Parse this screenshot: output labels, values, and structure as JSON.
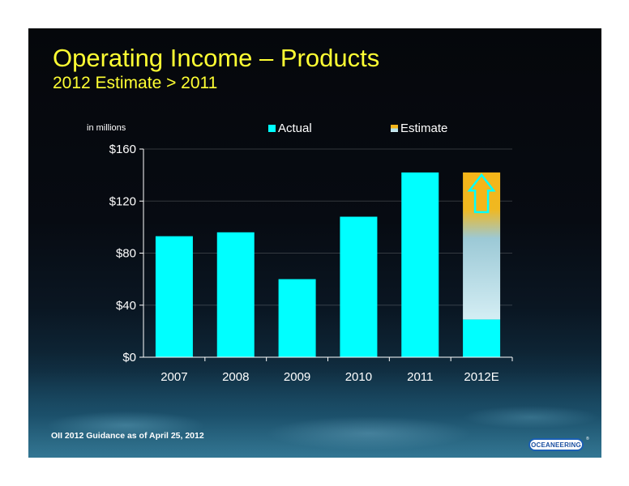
{
  "slide": {
    "title": "Operating Income – Products",
    "subtitle": "2012 Estimate > 2011",
    "unit_note": "in millions",
    "footnote": "OII 2012 Guidance as of April 25, 2012",
    "logo_text": "OCEANEERING",
    "logo_mark": "®"
  },
  "colors": {
    "title": "#ffff33",
    "actual": "#00ffff",
    "estimate_top": "#f5b519",
    "estimate_bottom": "#d4eef4",
    "arrow": "#f5b519"
  },
  "chart_data": {
    "type": "bar",
    "categories": [
      "2007",
      "2008",
      "2009",
      "2010",
      "2011",
      "2012E"
    ],
    "series": [
      {
        "name": "Actual",
        "values": [
          93,
          96,
          60,
          108,
          142,
          29
        ]
      },
      {
        "name": "Estimate",
        "values": [
          0,
          0,
          0,
          0,
          0,
          113
        ]
      }
    ],
    "stacked": true,
    "ylim": [
      0,
      160
    ],
    "yticks": [
      0,
      40,
      80,
      120,
      160
    ],
    "ytick_labels": [
      "$0",
      "$40",
      "$80",
      "$120",
      "$160"
    ],
    "legend": [
      "Actual",
      "Estimate"
    ],
    "legend_position": "top",
    "grid": true
  }
}
